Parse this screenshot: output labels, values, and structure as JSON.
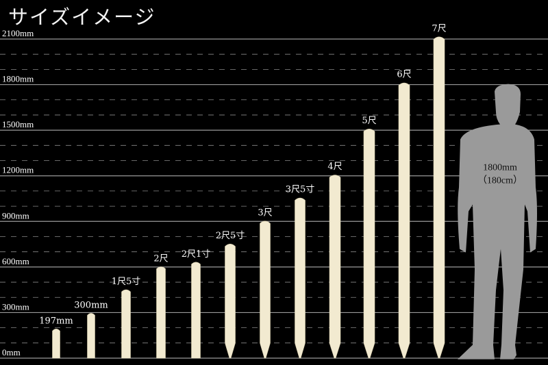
{
  "title": "サイズイメージ",
  "chart_data": {
    "type": "bar",
    "unit": "mm",
    "ylim": [
      0,
      2100
    ],
    "y_ticks": [
      {
        "value": 0,
        "label": "0mm"
      },
      {
        "value": 300,
        "label": "300mm"
      },
      {
        "value": 600,
        "label": "600mm"
      },
      {
        "value": 900,
        "label": "900mm"
      },
      {
        "value": 1200,
        "label": "1200mm"
      },
      {
        "value": 1500,
        "label": "1500mm"
      },
      {
        "value": 1800,
        "label": "1800mm"
      },
      {
        "value": 2100,
        "label": "2100mm"
      }
    ],
    "minor_grid_step": 100,
    "grid": true,
    "bar_color": "#f2ead0",
    "categories": [
      "197mm",
      "300mm",
      "1尺5寸",
      "2尺",
      "2尺1寸",
      "2尺5寸",
      "3尺",
      "3尺5寸",
      "4尺",
      "5尺",
      "6尺",
      "7尺"
    ],
    "values": [
      197,
      300,
      455,
      606,
      636,
      758,
      909,
      1061,
      1212,
      1515,
      1818,
      2121
    ],
    "reference": {
      "value": 1800,
      "label_mm": "1800mm",
      "label_cm": "（180cm）",
      "color": "#9a9a9a"
    }
  }
}
